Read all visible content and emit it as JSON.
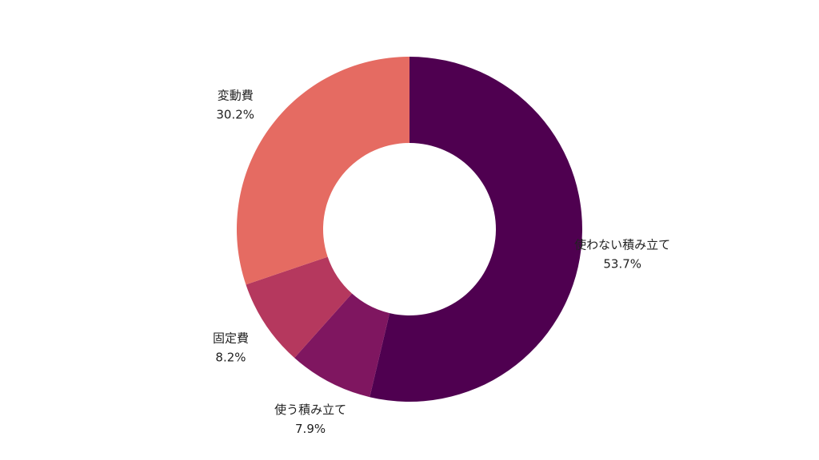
{
  "chart_data": {
    "type": "donut",
    "categories": [
      "使わない積み立て",
      "使う積み立て",
      "固定費",
      "変動費"
    ],
    "values": [
      53.7,
      7.9,
      8.2,
      30.2
    ],
    "value_labels": [
      "53.7%",
      "7.9%",
      "8.2%",
      "30.2%"
    ],
    "colors": [
      "#4f0050",
      "#7f1660",
      "#b5385e",
      "#e56b62"
    ]
  }
}
